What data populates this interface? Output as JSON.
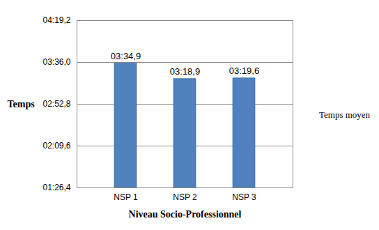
{
  "chart_data": {
    "type": "bar",
    "x_label": "Niveau Socio-Professionnel",
    "y_label": "Temps",
    "categories": [
      "NSP 1",
      "NSP 2",
      "NSP 3"
    ],
    "series": [
      {
        "name": "Temps moyen",
        "color": "#4f81bd",
        "values": [
          214.9,
          198.9,
          199.6
        ],
        "value_labels": [
          "03:34,9",
          "03:18,9",
          "03:19,6"
        ]
      }
    ],
    "ylim": [
      86.4,
      259.2
    ],
    "yticks": [
      {
        "value": 86.4,
        "label": "01:26,4"
      },
      {
        "value": 129.6,
        "label": "02:09,6"
      },
      {
        "value": 172.8,
        "label": "02:52,8"
      },
      {
        "value": 216.0,
        "label": "03:36,0"
      },
      {
        "value": 259.2,
        "label": "04:19,2"
      }
    ],
    "grid": true,
    "data_labels": true,
    "legend": "right"
  }
}
